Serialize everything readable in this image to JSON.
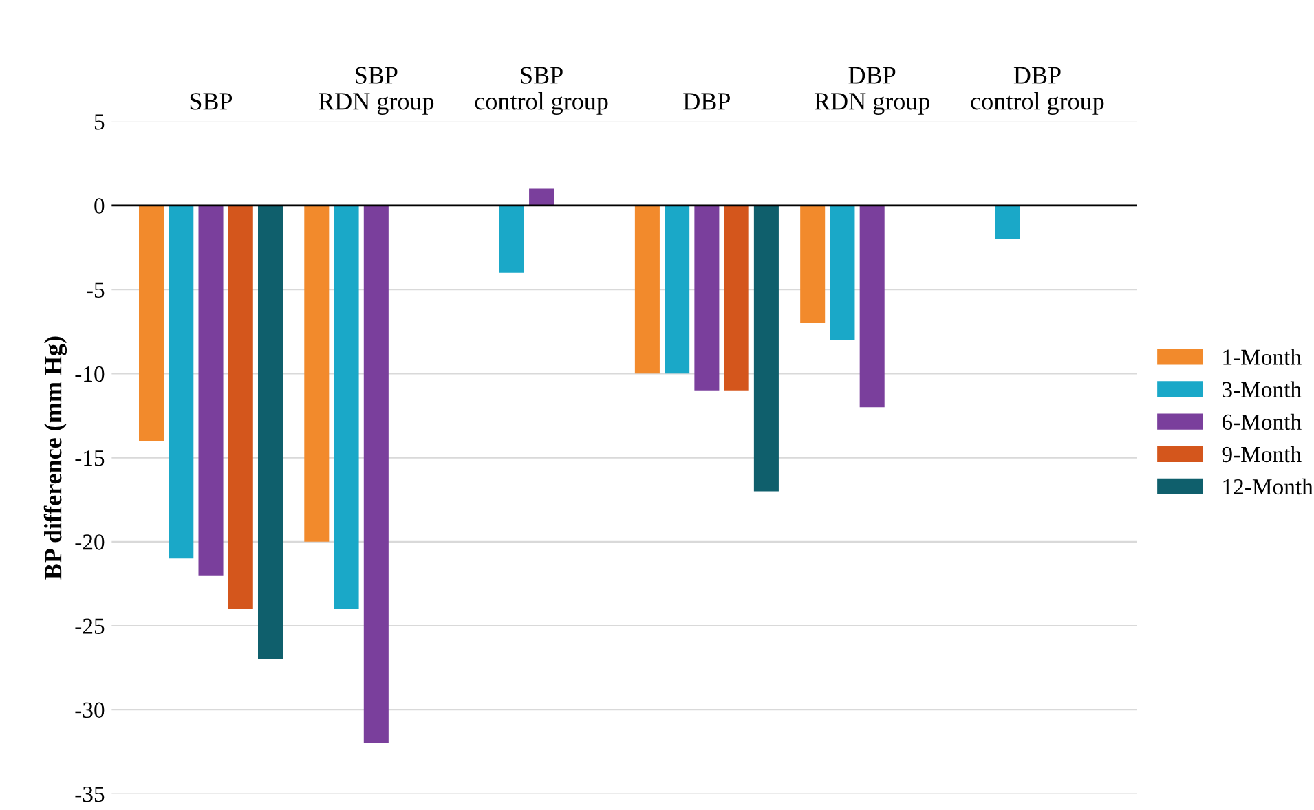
{
  "chart_data": {
    "type": "bar",
    "ylabel": "BP difference (mm Hg)",
    "categories": [
      "SBP",
      "SBP\nRDN group",
      "SBP\ncontrol group",
      "DBP",
      "DBP\nRDN group",
      "DBP\ncontrol group"
    ],
    "series": [
      {
        "name": "1-Month",
        "color": "#f28a2c",
        "values": [
          -14,
          -20,
          0,
          -10,
          -7,
          0
        ]
      },
      {
        "name": "3-Month",
        "color": "#1aa8c8",
        "values": [
          -21,
          -24,
          -4,
          -10,
          -8,
          -2
        ]
      },
      {
        "name": "6-Month",
        "color": "#7a3f9c",
        "values": [
          -22,
          -32,
          1,
          -11,
          -12,
          0
        ]
      },
      {
        "name": "9-Month",
        "color": "#d4561c",
        "values": [
          -24,
          null,
          null,
          -11,
          null,
          null
        ]
      },
      {
        "name": "12-Month",
        "color": "#0f5f6c",
        "values": [
          -27,
          null,
          null,
          -17,
          null,
          null
        ]
      }
    ],
    "ylim": [
      -35,
      5
    ],
    "yticks": [
      -35,
      -30,
      -25,
      -20,
      -15,
      -10,
      -5,
      0,
      5
    ],
    "grid": "y",
    "legend": "right"
  }
}
